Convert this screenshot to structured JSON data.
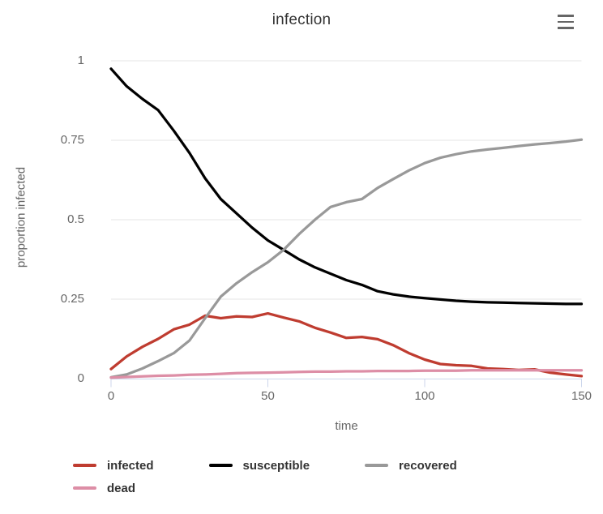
{
  "header": {
    "title": "infection",
    "menu_icon": "hamburger-icon"
  },
  "colors": {
    "background": "#ffffff",
    "gridline": "#e6e6e6",
    "axis_line": "#ccd6eb",
    "title_text": "#333333",
    "axis_text": "#666666",
    "legend_text": "#333333"
  },
  "chart_data": {
    "type": "line",
    "title": "infection",
    "xlabel": "time",
    "ylabel": "proportion infected",
    "xlim": [
      0,
      150
    ],
    "ylim": [
      0,
      1
    ],
    "x_ticks": [
      0,
      50,
      100,
      150
    ],
    "x_tick_labels": [
      "0",
      "50",
      "100",
      "150"
    ],
    "y_ticks": [
      0,
      0.25,
      0.5,
      0.75,
      1
    ],
    "y_tick_labels": [
      "0",
      "0.25",
      "0.5",
      "0.75",
      "1"
    ],
    "grid": "horizontal-only",
    "legend_position": "bottom",
    "x": [
      0,
      5,
      10,
      15,
      20,
      25,
      30,
      35,
      40,
      45,
      50,
      55,
      60,
      65,
      70,
      75,
      80,
      85,
      90,
      95,
      100,
      105,
      110,
      115,
      120,
      125,
      130,
      135,
      140,
      145,
      150
    ],
    "series": [
      {
        "name": "infected",
        "color": "#bf3c30",
        "values": [
          0.03,
          0.07,
          0.1,
          0.125,
          0.155,
          0.17,
          0.198,
          0.19,
          0.196,
          0.194,
          0.205,
          0.192,
          0.18,
          0.16,
          0.145,
          0.128,
          0.131,
          0.124,
          0.105,
          0.08,
          0.06,
          0.046,
          0.042,
          0.04,
          0.032,
          0.03,
          0.027,
          0.029,
          0.019,
          0.013,
          0.008
        ]
      },
      {
        "name": "susceptible",
        "color": "#000000",
        "values": [
          0.975,
          0.92,
          0.88,
          0.845,
          0.78,
          0.71,
          0.63,
          0.565,
          0.52,
          0.475,
          0.435,
          0.405,
          0.375,
          0.35,
          0.33,
          0.31,
          0.295,
          0.275,
          0.265,
          0.258,
          0.253,
          0.249,
          0.245,
          0.242,
          0.24,
          0.239,
          0.238,
          0.237,
          0.236,
          0.235,
          0.235
        ]
      },
      {
        "name": "recovered",
        "color": "#999999",
        "values": [
          0.004,
          0.013,
          0.032,
          0.055,
          0.08,
          0.12,
          0.19,
          0.258,
          0.3,
          0.335,
          0.366,
          0.405,
          0.455,
          0.5,
          0.54,
          0.555,
          0.565,
          0.6,
          0.628,
          0.655,
          0.678,
          0.695,
          0.706,
          0.715,
          0.721,
          0.726,
          0.732,
          0.737,
          0.741,
          0.746,
          0.752
        ]
      },
      {
        "name": "dead",
        "color": "#dd8ea6",
        "values": [
          0.003,
          0.005,
          0.007,
          0.009,
          0.01,
          0.012,
          0.013,
          0.015,
          0.017,
          0.018,
          0.019,
          0.02,
          0.021,
          0.022,
          0.022,
          0.023,
          0.023,
          0.024,
          0.024,
          0.024,
          0.025,
          0.025,
          0.025,
          0.026,
          0.026,
          0.026,
          0.026,
          0.026,
          0.026,
          0.026,
          0.026
        ]
      }
    ]
  }
}
